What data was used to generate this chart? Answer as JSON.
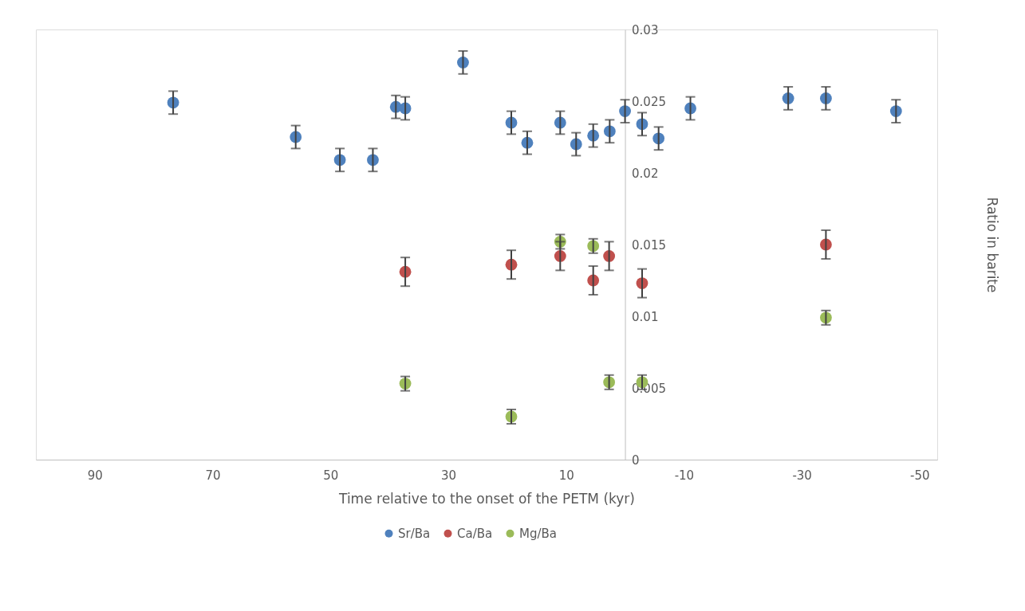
{
  "chart_data": {
    "type": "scatter",
    "xlabel": "Time relative to the onset of the PETM (kyr)",
    "ylabel": "Ratio in barite",
    "xlim": [
      100,
      -53
    ],
    "xticks": [
      90,
      70,
      50,
      30,
      10,
      -10,
      -30,
      -50
    ],
    "ylim": [
      0,
      0.03
    ],
    "yticks": [
      0,
      0.005,
      0.01,
      0.015,
      0.02,
      0.025,
      0.03
    ],
    "grid": false,
    "legend": "bottom",
    "marker": "circle",
    "series": [
      {
        "name": "Sr/Ba",
        "color": "#4f81bd",
        "x": [
          76.7,
          55.9,
          48.4,
          42.8,
          38.9,
          37.3,
          27.5,
          19.3,
          16.6,
          11.0,
          8.3,
          5.4,
          2.6,
          0,
          -2.9,
          -5.7,
          -11.1,
          -27.7,
          -34.1,
          -46.0
        ],
        "values": [
          0.0249,
          0.0225,
          0.0209,
          0.0209,
          0.0246,
          0.0245,
          0.0277,
          0.0235,
          0.0221,
          0.0235,
          0.022,
          0.0226,
          0.0229,
          0.0243,
          0.0234,
          0.0224,
          0.0245,
          0.0252,
          0.0252,
          0.0243
        ],
        "errors": [
          0.0008,
          0.0008,
          0.0008,
          0.0008,
          0.0008,
          0.0008,
          0.0008,
          0.0008,
          0.0008,
          0.0008,
          0.0008,
          0.0008,
          0.0008,
          0.0008,
          0.0008,
          0.0008,
          0.0008,
          0.0008,
          0.0008,
          0.0008
        ]
      },
      {
        "name": "Ca/Ba",
        "color": "#c0504d",
        "x": [
          37.3,
          19.3,
          11.0,
          5.4,
          2.7,
          -2.9,
          -34.1
        ],
        "values": [
          0.0131,
          0.0136,
          0.0142,
          0.0125,
          0.0142,
          0.0123,
          0.015
        ],
        "errors": [
          0.001,
          0.001,
          0.001,
          0.001,
          0.001,
          0.001,
          0.001
        ]
      },
      {
        "name": "Mg/Ba",
        "color": "#9bbb59",
        "x": [
          37.3,
          19.3,
          11.0,
          5.4,
          2.7,
          -2.9,
          -34.1
        ],
        "values": [
          0.0053,
          0.003,
          0.0152,
          0.0149,
          0.0054,
          0.0054,
          0.0099
        ],
        "errors": [
          0.0005,
          0.0005,
          0.0005,
          0.0005,
          0.0005,
          0.0005,
          0.0005
        ]
      }
    ]
  }
}
